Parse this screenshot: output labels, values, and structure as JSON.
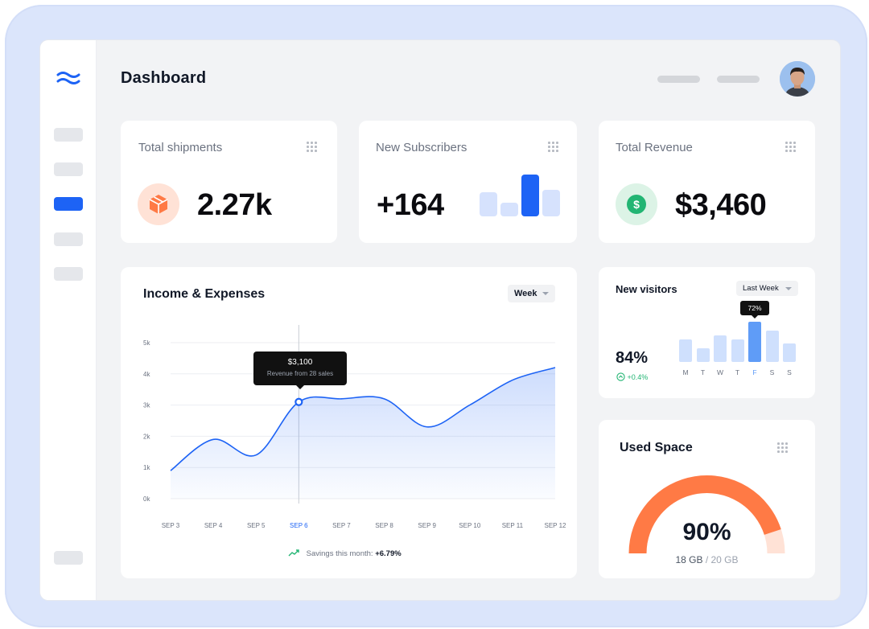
{
  "header": {
    "title": "Dashboard"
  },
  "sidebar": {
    "items": [
      "nav-1",
      "nav-2",
      "nav-3-active",
      "nav-4",
      "nav-5"
    ]
  },
  "shipments": {
    "title": "Total shipments",
    "value": "2.27k",
    "icon": "box-icon"
  },
  "subscribers": {
    "title": "New Subscribers",
    "value": "+164",
    "bars": [
      0.55,
      0.3,
      0.95,
      0.6
    ],
    "highlight_index": 2
  },
  "revenue": {
    "title": "Total Revenue",
    "value": "$3,460",
    "icon": "dollar-icon"
  },
  "income": {
    "title": "Income & Expenses",
    "range": "Week",
    "tooltip_value": "$3,100",
    "tooltip_sub": "Revenue from 28 sales",
    "savings_label": "Savings this month:",
    "savings_value": "+6.79%"
  },
  "visitors": {
    "title": "New visitors",
    "range": "Last Week",
    "percent": "84%",
    "change": "+0.4%",
    "tooltip": "72%",
    "days": [
      "M",
      "T",
      "W",
      "T",
      "F",
      "S",
      "S"
    ],
    "values": [
      0.55,
      0.34,
      0.66,
      0.55,
      1.0,
      0.77,
      0.45
    ],
    "active_index": 4
  },
  "space": {
    "title": "Used Space",
    "percent": "90%",
    "used": "18 GB",
    "total": "20 GB",
    "fraction": 0.9
  },
  "chart_data": {
    "type": "area",
    "x": [
      "SEP 3",
      "SEP 4",
      "SEP 5",
      "SEP 6",
      "SEP 7",
      "SEP 8",
      "SEP 9",
      "SEP 10",
      "SEP 11",
      "SEP 12"
    ],
    "y": [
      0.9,
      1.9,
      1.4,
      3.1,
      3.2,
      3.2,
      2.3,
      3.0,
      3.8,
      4.2
    ],
    "yticks": [
      "0k",
      "1k",
      "2k",
      "3k",
      "4k",
      "5k"
    ],
    "ylim": [
      0,
      5
    ],
    "highlight_x": "SEP 6",
    "grid": true,
    "color": "#1d63f5"
  },
  "colors": {
    "accent": "#1d63f5",
    "orange": "#ff7a45",
    "green": "#22b573"
  }
}
